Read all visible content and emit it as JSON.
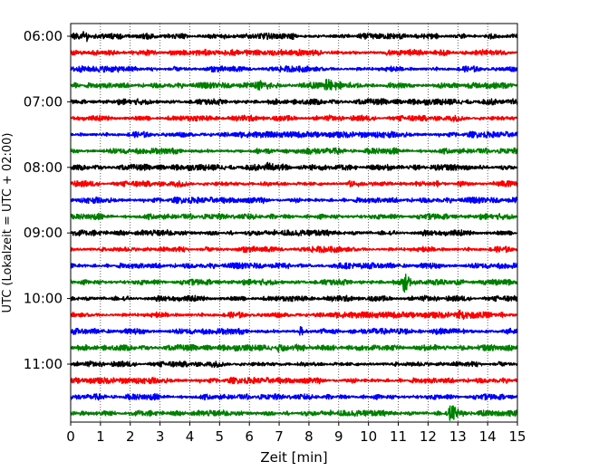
{
  "chart_data": {
    "type": "line",
    "title": "",
    "xlabel": "Zeit  [min]",
    "ylabel": "UTC (Lokalzeit = UTC + 02:00)",
    "xlim": [
      0,
      15
    ],
    "x_ticks": [
      "0",
      "1",
      "2",
      "3",
      "4",
      "5",
      "6",
      "7",
      "8",
      "9",
      "10",
      "11",
      "12",
      "13",
      "14",
      "15"
    ],
    "y_ticks": [
      "06:00",
      "07:00",
      "08:00",
      "09:00",
      "10:00",
      "11:00"
    ],
    "grid_vertical": true,
    "trace_interval_minutes": 15,
    "trace_count": 24,
    "trace_start": "06:00",
    "colors": [
      "#000000",
      "#ff0000",
      "#0000ff",
      "#008000"
    ],
    "events": [
      {
        "trace": 0,
        "minute": 0.45,
        "amp": 0.35,
        "dur": 0.35
      },
      {
        "trace": 3,
        "minute": 6.3,
        "amp": 0.45,
        "dur": 0.6
      },
      {
        "trace": 3,
        "minute": 8.55,
        "amp": 0.6,
        "dur": 0.35
      },
      {
        "trace": 8,
        "minute": 6.6,
        "amp": 0.45,
        "dur": 0.4
      },
      {
        "trace": 9,
        "minute": 9.35,
        "amp": 0.4,
        "dur": 0.2
      },
      {
        "trace": 15,
        "minute": 11.2,
        "amp": 1.0,
        "dur": 0.3
      },
      {
        "trace": 17,
        "minute": 13.05,
        "amp": 0.45,
        "dur": 0.3
      },
      {
        "trace": 18,
        "minute": 7.7,
        "amp": 0.45,
        "dur": 0.2
      },
      {
        "trace": 19,
        "minute": 7.0,
        "amp": 0.4,
        "dur": 0.5
      },
      {
        "trace": 23,
        "minute": 12.75,
        "amp": 1.0,
        "dur": 0.35
      }
    ]
  }
}
